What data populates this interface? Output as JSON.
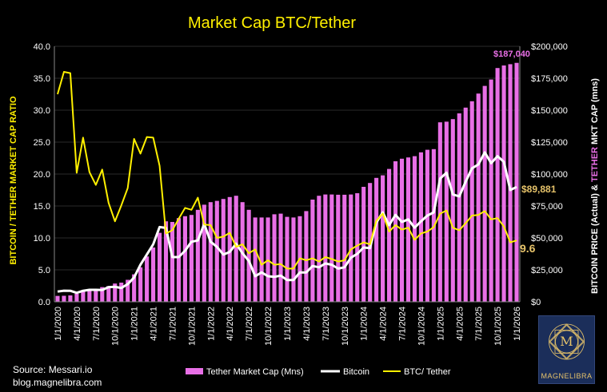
{
  "chart_data": {
    "type": "bar+line",
    "title": "Market Cap BTC/Tether",
    "ylabel_left": "BITCOIN / TETHER MARKET CAP RATIO",
    "ylabel_right_part1": "BITCOIN PRICE (Actual) & ",
    "ylabel_right_part2": "TETHER",
    "ylabel_right_part3": " MKT CAP (mns)",
    "ylim_left": [
      0,
      40
    ],
    "ylim_right": [
      0,
      200000
    ],
    "left_ticks": [
      "0.0",
      "5.0",
      "10.0",
      "15.0",
      "20.0",
      "25.0",
      "30.0",
      "35.0",
      "40.0"
    ],
    "right_ticks": [
      "$0",
      "$25,000",
      "$50,000",
      "$75,000",
      "$100,000",
      "$125,000",
      "$150,000",
      "$175,000",
      "$200,000"
    ],
    "x_tick_labels": [
      "1/1/2020",
      "4/1/2020",
      "7/1/2020",
      "10/1/2020",
      "1/1/2021",
      "4/1/2021",
      "7/1/2021",
      "10/1/2021",
      "1/1/2022",
      "4/1/2022",
      "7/1/2022",
      "10/1/2022",
      "1/1/2023",
      "4/1/2023",
      "7/1/2023",
      "10/1/2023",
      "1/1/2024",
      "4/1/2024",
      "7/1/2024",
      "10/1/2024",
      "1/1/2025",
      "4/1/2025",
      "7/1/2025",
      "10/1/2025",
      "1/1/2026"
    ],
    "series": [
      {
        "name": "Tether Market Cap (Mns)",
        "type": "bar",
        "axis": "right",
        "color": "#e86fe6",
        "values": [
          4600,
          4700,
          5000,
          6300,
          8500,
          9500,
          10000,
          11500,
          12300,
          14300,
          15000,
          17200,
          21500,
          27000,
          35500,
          42500,
          54000,
          63000,
          62500,
          65500,
          67000,
          68000,
          72000,
          76000,
          78000,
          79000,
          80500,
          82000,
          83000,
          78000,
          72000,
          66000,
          66000,
          66000,
          68500,
          69000,
          66500,
          66000,
          67000,
          71000,
          80000,
          83000,
          84000,
          84000,
          83800,
          83800,
          84000,
          85000,
          90000,
          93000,
          97000,
          99000,
          104000,
          110000,
          112000,
          113000,
          114000,
          117000,
          119000,
          119500,
          140500,
          141000,
          143000,
          147500,
          152000,
          157000,
          163000,
          169000,
          174000,
          183000,
          185000,
          186000,
          187040
        ]
      },
      {
        "name": "Bitcoin",
        "type": "line",
        "axis": "right",
        "color": "#ffffff",
        "values": [
          8000,
          8700,
          8600,
          7000,
          8600,
          9400,
          9400,
          9200,
          11500,
          11700,
          10800,
          13800,
          19000,
          29000,
          37000,
          45000,
          58500,
          57800,
          35000,
          35000,
          40000,
          47000,
          48000,
          61000,
          47000,
          43000,
          37000,
          39000,
          45500,
          38000,
          32000,
          20000,
          23000,
          20000,
          19500,
          20500,
          17000,
          17000,
          23000,
          23000,
          28000,
          27000,
          30000,
          29000,
          26000,
          27000,
          34500,
          37500,
          42500,
          42000,
          62000,
          70000,
          60000,
          68000,
          62500,
          64500,
          58000,
          63000,
          67500,
          70000,
          96500,
          101000,
          84000,
          82500,
          94000,
          104500,
          107500,
          117000,
          108500,
          114000,
          109500,
          87500,
          89881
        ]
      },
      {
        "name": "BTC/ Tether",
        "type": "line",
        "axis": "left",
        "color": "#fff000",
        "values": [
          32.5,
          36,
          35.8,
          20.2,
          25.7,
          20.3,
          18.3,
          20.7,
          15.5,
          12.6,
          15.1,
          17.8,
          25.5,
          23.2,
          25.8,
          25.7,
          21.3,
          10.7,
          11.2,
          13.0,
          14.7,
          14.4,
          16.3,
          12.1,
          12.0,
          10.0,
          10.2,
          10.8,
          8.6,
          9.0,
          7.6,
          8.2,
          5.8,
          6.5,
          5.8,
          5.9,
          5.2,
          5.2,
          6.8,
          6.5,
          6.8,
          6.3,
          7.0,
          6.7,
          6.3,
          6.5,
          8.2,
          8.8,
          9.3,
          9.0,
          12.7,
          13.8,
          11.0,
          12.0,
          11.3,
          11.6,
          9.7,
          10.7,
          11.0,
          11.7,
          13.8,
          14.3,
          11.6,
          11.2,
          12.3,
          13.5,
          13.6,
          14.2,
          12.9,
          13.1,
          11.8,
          9.3,
          9.6
        ]
      }
    ],
    "annotations": {
      "tether_last": "$187,040",
      "btc_last": "$89,881",
      "ratio_last": "9.6"
    }
  },
  "legend": {
    "tether": "Tether Market Cap (Mns)",
    "bitcoin": "Bitcoin",
    "ratio": "BTC/ Tether"
  },
  "footer": {
    "source": "Source: Messari.io",
    "blog": "blog.magnelibra.com"
  },
  "logo": {
    "text": "MAGNELIBRA",
    "monogram": "M"
  },
  "colors": {
    "tether": "#e86fe6",
    "bitcoin": "#ffffff",
    "ratio": "#fff000",
    "title": "#fff000",
    "axis": "#999999",
    "grid": "#333333"
  }
}
